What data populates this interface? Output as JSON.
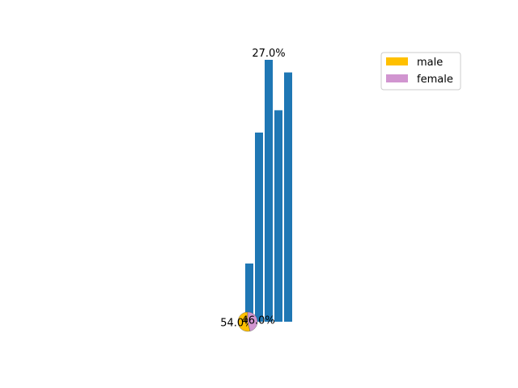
{
  "chart_data": [
    {
      "type": "bar",
      "values": [
        6.0,
        19.5,
        27.0,
        21.8,
        25.7
      ],
      "data_labels": [
        "",
        "",
        "27.0%",
        "",
        ""
      ],
      "ylim": [
        0,
        27.0
      ],
      "grid": false,
      "axes_visible": false,
      "color": "#1f77b4"
    },
    {
      "type": "pie",
      "labels": [
        "male",
        "female"
      ],
      "values": [
        54.0,
        46.0
      ],
      "data_labels": [
        "54.0%",
        "46.0%"
      ],
      "colors": [
        "#ffc000",
        "#d195d0"
      ],
      "legend": "top-right"
    }
  ]
}
